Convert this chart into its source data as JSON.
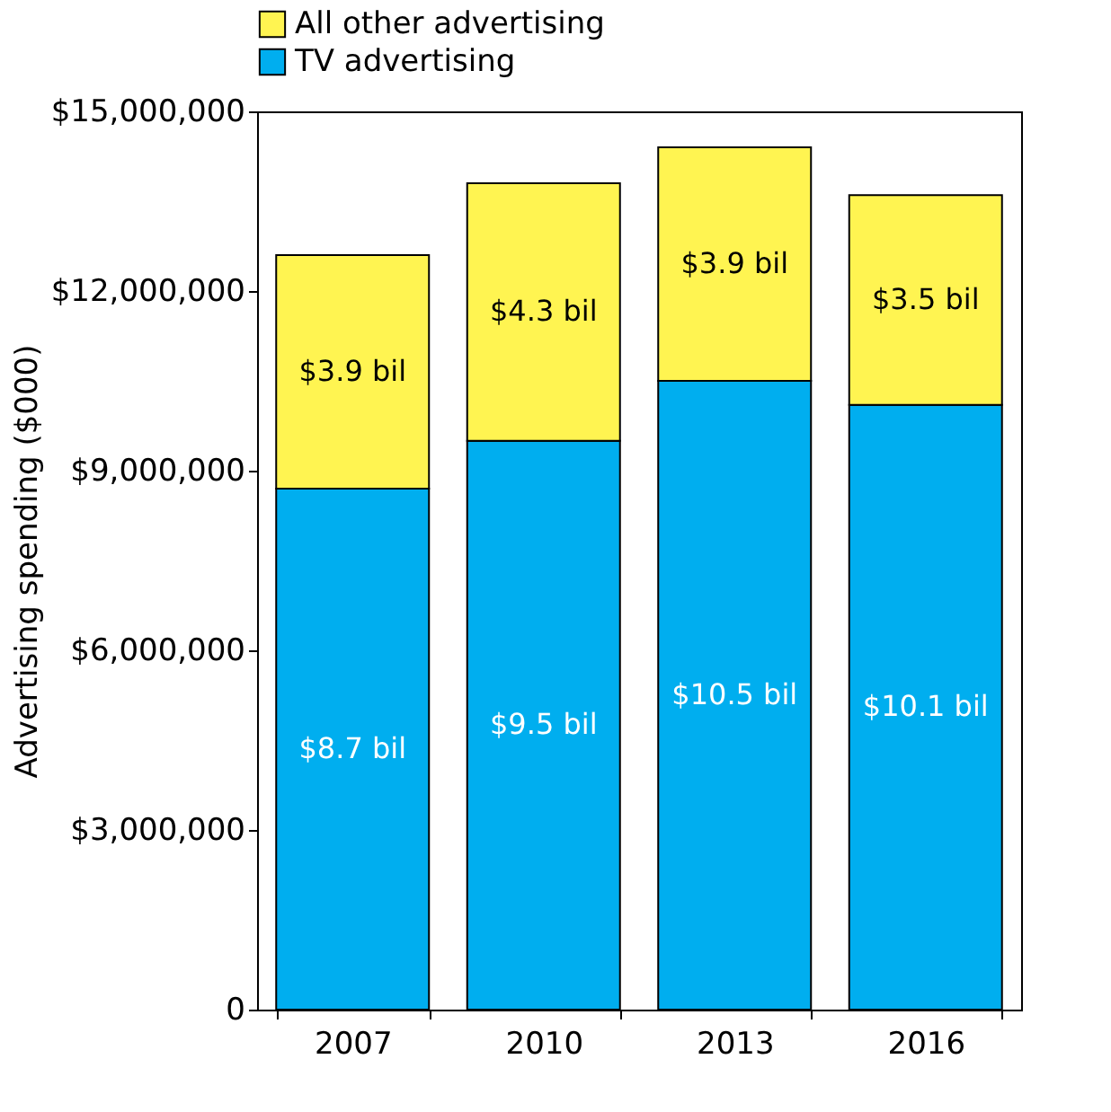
{
  "chart_data": {
    "type": "bar",
    "stacked": true,
    "ylabel": "Advertising spending ($000)",
    "categories": [
      "2007",
      "2010",
      "2013",
      "2016"
    ],
    "series": [
      {
        "name": "TV advertising",
        "color": "#00aeef",
        "values": [
          8700000,
          9500000,
          10500000,
          10100000
        ]
      },
      {
        "name": "All other advertising",
        "color": "#fff451",
        "values": [
          3900000,
          4300000,
          3900000,
          3500000
        ]
      }
    ],
    "annotations": [
      "$8.7 bil",
      "$9.5 bil",
      "$10.5 bil",
      "$10.1 bil",
      "$3.9 bil",
      "$4.3 bil",
      "$3.9 bil",
      "$3.5 bil"
    ],
    "ylim": [
      0,
      15000000
    ],
    "yticks": [
      0,
      {
        "value": 3000000,
        "label": "$3,000,000"
      },
      {
        "value": 6000000,
        "label": "$6,000,000"
      },
      {
        "value": 9000000,
        "label": "$9,000,000"
      },
      {
        "value": 12000000,
        "label": "$12,000,000"
      },
      {
        "value": 15000000,
        "label": "$15,000,000"
      }
    ],
    "grid": false,
    "legend": "top"
  }
}
